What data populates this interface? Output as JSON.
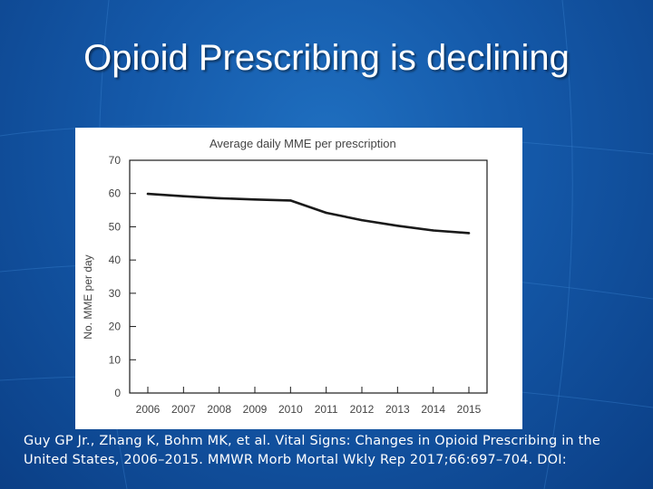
{
  "slide": {
    "title": "Opioid Prescribing is declining",
    "citation": "Guy GP Jr., Zhang K, Bohm MK, et al. Vital Signs: Changes in Opioid Prescribing in the United States, 2006–2015. MMWR Morb Mortal Wkly Rep 2017;66:697–704. DOI:"
  },
  "colors": {
    "background": "#1458a8",
    "line": "#1a1a1a",
    "text": "#ffffff",
    "chart_text": "#333333"
  },
  "chart_data": {
    "type": "line",
    "title": "Average daily MME per prescription",
    "xlabel": "",
    "ylabel": "No. MME per day",
    "x": [
      2006,
      2007,
      2008,
      2009,
      2010,
      2011,
      2012,
      2013,
      2014,
      2015
    ],
    "x_tick_labels": [
      "2006",
      "2007",
      "2008",
      "2009",
      "2010",
      "2011",
      "2012",
      "2013",
      "2014",
      "2015"
    ],
    "series": [
      {
        "name": "Average daily MME per prescription",
        "values": [
          59.9,
          59.2,
          58.6,
          58.2,
          57.9,
          54.2,
          52.0,
          50.3,
          48.9,
          48.1
        ]
      }
    ],
    "ylim": [
      0,
      70
    ],
    "y_ticks": [
      0,
      10,
      20,
      30,
      40,
      50,
      60,
      70
    ],
    "y_tick_labels": [
      "0",
      "10",
      "20",
      "30",
      "40",
      "50",
      "60",
      "70"
    ],
    "grid": false,
    "legend": "none"
  }
}
